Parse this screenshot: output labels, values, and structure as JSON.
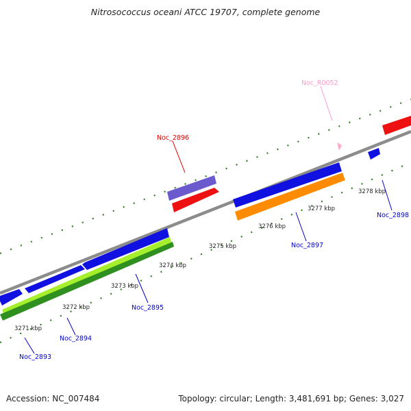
{
  "header": {
    "title": "Nitrosococcus oceani ATCC 19707, complete genome"
  },
  "footer": {
    "accession": "Accession: NC_007484",
    "summary": "Topology: circular; Length: 3,481,691 bp; Genes: 3,027"
  },
  "ticks": [
    "3271 kbp",
    "3272 kbp",
    "3273 kbp",
    "3274 kbp",
    "3275 kbp",
    "3276 kbp",
    "3277 kbp",
    "3278 kbp"
  ],
  "gene_labels": [
    "Noc_2893",
    "Noc_2894",
    "Noc_2895",
    "Noc_2896",
    "Noc_2897",
    "Noc_2898",
    "Noc_R0052"
  ],
  "colors": {
    "backbone": "#8c8c8c",
    "tick": "#2e7d1e",
    "cds_blue": "#1010e0",
    "cds_red": "#ee1111",
    "cds_orange": "#ff8c00",
    "cds_purple": "#6a5acd",
    "cds_lightgreen": "#a6ef2c",
    "cds_green": "#2f8f1f",
    "rna_pink": "#ffaacc",
    "label_blue": "#0000cc",
    "label_red": "#dd0000",
    "label_pink": "#ff99cc"
  }
}
